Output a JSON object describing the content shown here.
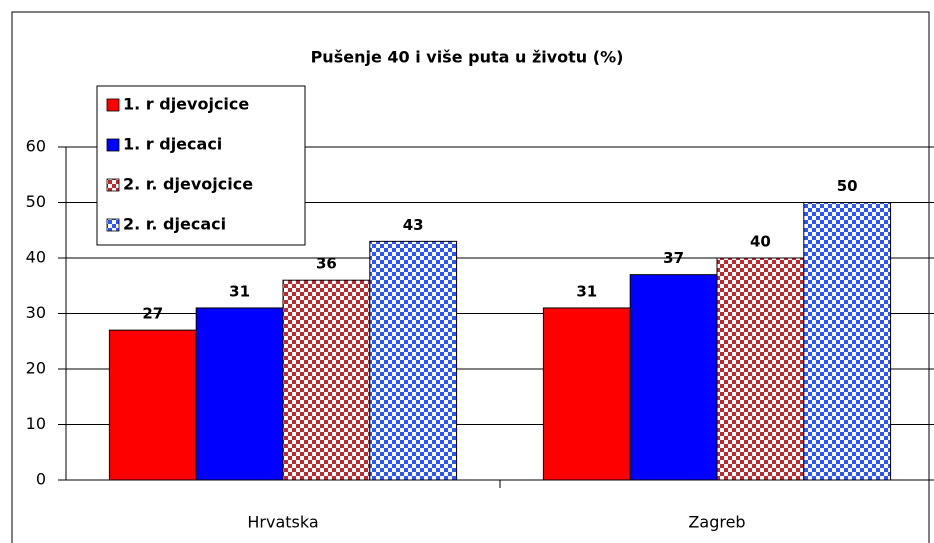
{
  "chart_data": {
    "type": "bar",
    "title": "Pušenje 40 i više puta u životu (%)",
    "categories": [
      "Hrvatska",
      "Zagreb"
    ],
    "series": [
      {
        "name": "1. r djevojcice",
        "color": "#ff0000",
        "values": [
          27,
          31
        ]
      },
      {
        "name": "1. r djecaci",
        "color": "#0000ff",
        "values": [
          31,
          37
        ]
      },
      {
        "name": "2. r. djevojcice",
        "color": "#c0282d",
        "pattern": "checker",
        "values": [
          36,
          40
        ]
      },
      {
        "name": "2. r. djecaci",
        "color": "#2b55ff",
        "pattern": "checker",
        "values": [
          43,
          50
        ]
      }
    ],
    "ylim": [
      0,
      60
    ],
    "yticks": [
      0,
      10,
      20,
      30,
      40,
      50,
      60
    ],
    "grid": true,
    "legend": "top-left"
  }
}
